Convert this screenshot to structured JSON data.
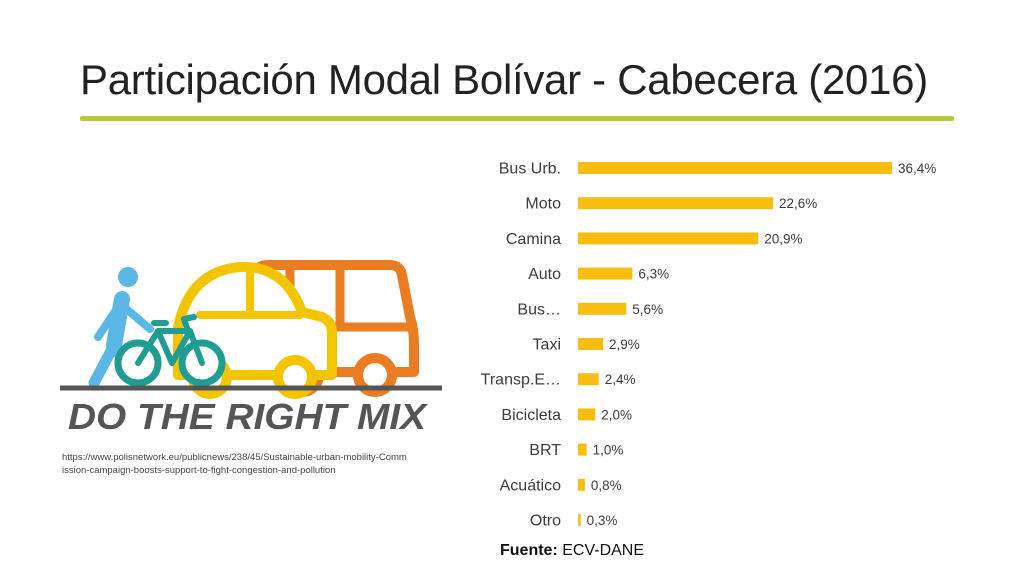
{
  "slide": {
    "title": "Participación Modal Bolívar - Cabecera (2016)",
    "accent_color": "#b8c93a",
    "bar_color": "#f7bd0f"
  },
  "illustration": {
    "banner_text": "DO THE RIGHT MIX",
    "icons": [
      "pedestrian-icon",
      "bicycle-icon",
      "car-icon",
      "bus-icon"
    ],
    "colors": {
      "pedestrian": "#5bb7e6",
      "bicycle": "#1f9d93",
      "car": "#f2c500",
      "bus": "#ea7c22",
      "text": "#555555"
    },
    "caption": "https://www.polisnetwork.eu/publicnews/238/45/Sustainable-urban-mobility-Commission-campaign-boosts-support-to-fight-congestion-and-pollution"
  },
  "source": {
    "label": "Fuente:",
    "text": "ECV-DANE"
  },
  "chart_data": {
    "type": "bar",
    "orientation": "horizontal",
    "title": "Participación Modal Bolívar - Cabecera (2016)",
    "categories": [
      "Bus Urb.",
      "Moto",
      "Camina",
      "Auto",
      "Bus…",
      "Taxi",
      "Transp.E…",
      "Bicicleta",
      "BRT",
      "Acuático",
      "Otro"
    ],
    "values": [
      36.4,
      22.6,
      20.9,
      6.3,
      5.6,
      2.9,
      2.4,
      2.0,
      1.0,
      0.8,
      0.3
    ],
    "value_labels": [
      "36,4%",
      "22,6%",
      "20,9%",
      "6,3%",
      "5,6%",
      "2,9%",
      "2,4%",
      "2,0%",
      "1,0%",
      "0,8%",
      "0,3%"
    ],
    "unit": "%",
    "xlim": [
      0,
      36.4
    ],
    "grid": false,
    "legend": "none"
  }
}
